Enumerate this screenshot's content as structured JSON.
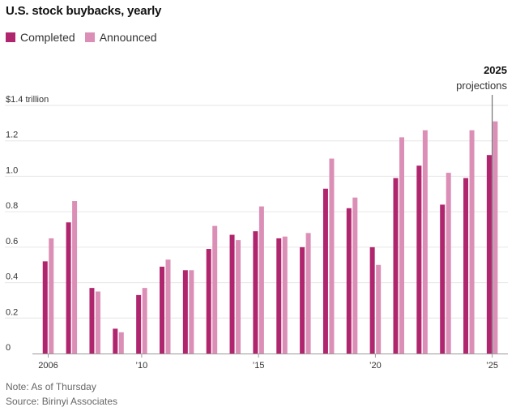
{
  "colors": {
    "completed": "#b0266e",
    "announced": "#dc8fb6",
    "gridline": "#e6e6e6",
    "baseline": "#9a9a9a",
    "projection_line": "#555555"
  },
  "chart_data": {
    "type": "bar",
    "title": "U.S. stock buybacks, yearly",
    "xlabel": "",
    "ylabel": "",
    "ylim": [
      0,
      1.4
    ],
    "y_ticks": [
      {
        "value": 0,
        "label": "0"
      },
      {
        "value": 0.2,
        "label": "0.2"
      },
      {
        "value": 0.4,
        "label": "0.4"
      },
      {
        "value": 0.6,
        "label": "0.6"
      },
      {
        "value": 0.8,
        "label": "0.8"
      },
      {
        "value": 1.0,
        "label": "1.0"
      },
      {
        "value": 1.2,
        "label": "1.2"
      },
      {
        "value": 1.4,
        "label": "$1.4 trillion"
      }
    ],
    "categories": [
      "2006",
      "2007",
      "2008",
      "2009",
      "2010",
      "2011",
      "2012",
      "2013",
      "2014",
      "2015",
      "2016",
      "2017",
      "2018",
      "2019",
      "2020",
      "2021",
      "2022",
      "2023",
      "2024",
      "2025"
    ],
    "x_tick_labels": [
      {
        "category": "2006",
        "label": "2006"
      },
      {
        "category": "2010",
        "label": "’10"
      },
      {
        "category": "2015",
        "label": "’15"
      },
      {
        "category": "2020",
        "label": "’20"
      },
      {
        "category": "2025",
        "label": "’25"
      }
    ],
    "series": [
      {
        "name": "Completed",
        "values": [
          0.52,
          0.74,
          0.37,
          0.14,
          0.33,
          0.49,
          0.47,
          0.59,
          0.67,
          0.69,
          0.65,
          0.6,
          0.93,
          0.82,
          0.6,
          0.99,
          1.06,
          0.84,
          0.99,
          1.12
        ]
      },
      {
        "name": "Announced",
        "values": [
          0.65,
          0.86,
          0.35,
          0.12,
          0.37,
          0.53,
          0.47,
          0.72,
          0.64,
          0.83,
          0.66,
          0.68,
          1.1,
          0.88,
          0.5,
          1.22,
          1.26,
          1.02,
          1.26,
          1.31
        ]
      }
    ],
    "annotation": {
      "category": "2025",
      "year": "2025",
      "label": "projections"
    },
    "legend_position": "top-left",
    "grid": true
  },
  "footer": {
    "note": "Note: As of Thursday",
    "source": "Source: Birinyi Associates"
  }
}
